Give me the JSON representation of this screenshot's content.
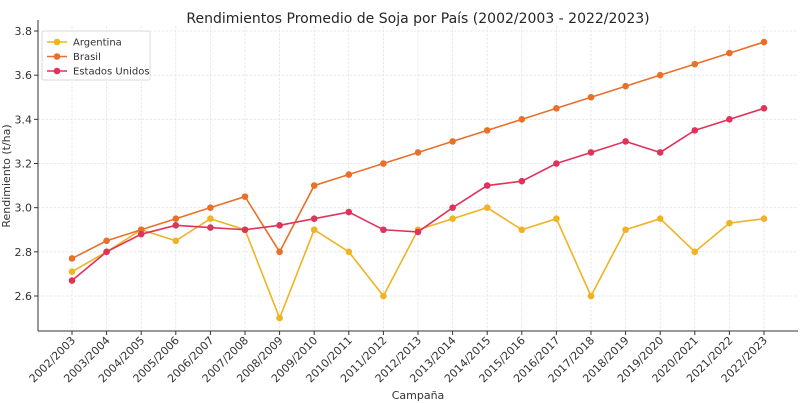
{
  "chart_data": {
    "type": "line",
    "title": "Rendimientos Promedio de Soja por País (2002/2003 - 2022/2023)",
    "xlabel": "Campaña",
    "ylabel": "Rendimiento (t/ha)",
    "ylim": [
      2.44,
      3.82
    ],
    "yticks": [
      2.6,
      2.8,
      3.0,
      3.2,
      3.4,
      3.6,
      3.8
    ],
    "ytick_labels": [
      "2.6",
      "2.8",
      "3.0",
      "3.2",
      "3.4",
      "3.6",
      "3.8"
    ],
    "grid": true,
    "legend_position": "upper left",
    "categories": [
      "2002/2003",
      "2003/2004",
      "2004/2005",
      "2005/2006",
      "2006/2007",
      "2007/2008",
      "2008/2009",
      "2009/2010",
      "2010/2011",
      "2011/2012",
      "2012/2013",
      "2013/2014",
      "2014/2015",
      "2015/2016",
      "2016/2017",
      "2017/2018",
      "2018/2019",
      "2019/2020",
      "2020/2021",
      "2021/2022",
      "2022/2023"
    ],
    "series": [
      {
        "name": "Argentina",
        "color": "#f0b323",
        "values": [
          2.71,
          2.8,
          2.9,
          2.85,
          2.95,
          2.9,
          2.5,
          2.9,
          2.8,
          2.6,
          2.9,
          2.95,
          3.0,
          2.9,
          2.95,
          2.6,
          2.9,
          2.95,
          2.8,
          2.93,
          2.95
        ]
      },
      {
        "name": "Brasil",
        "color": "#e8702a",
        "values": [
          2.77,
          2.85,
          2.9,
          2.95,
          3.0,
          3.05,
          2.8,
          3.1,
          3.15,
          3.2,
          3.25,
          3.3,
          3.35,
          3.4,
          3.45,
          3.5,
          3.55,
          3.6,
          3.65,
          3.7,
          3.75
        ]
      },
      {
        "name": "Estados Unidos",
        "color": "#e0325a",
        "values": [
          2.67,
          2.8,
          2.88,
          2.92,
          2.91,
          2.9,
          2.92,
          2.95,
          2.98,
          2.9,
          2.89,
          3.0,
          3.1,
          3.12,
          3.2,
          3.25,
          3.3,
          3.25,
          3.35,
          3.4,
          3.45
        ]
      }
    ]
  }
}
